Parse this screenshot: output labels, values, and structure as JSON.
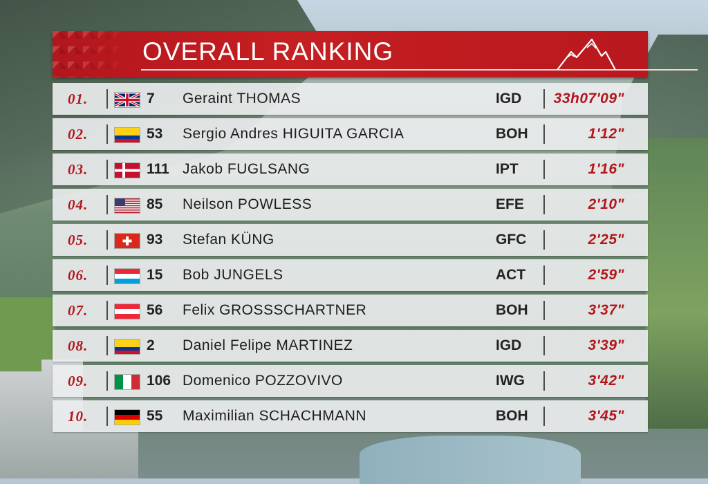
{
  "title": "OVERALL RANKING",
  "colors": {
    "accent": "#b3161d",
    "row_bg": "#eceeef",
    "text": "#1d1d1d"
  },
  "logo": {
    "icon": "mountain-peaks-icon"
  },
  "rows": [
    {
      "rank": "01.",
      "flag": "gb",
      "bib": "7",
      "name": "Geraint THOMAS",
      "team": "IGD",
      "time": "33h07'09\""
    },
    {
      "rank": "02.",
      "flag": "co",
      "bib": "53",
      "name": "Sergio Andres HIGUITA GARCIA",
      "team": "BOH",
      "time": "1'12\""
    },
    {
      "rank": "03.",
      "flag": "dk",
      "bib": "111",
      "name": "Jakob FUGLSANG",
      "team": "IPT",
      "time": "1'16\""
    },
    {
      "rank": "04.",
      "flag": "us",
      "bib": "85",
      "name": "Neilson POWLESS",
      "team": "EFE",
      "time": "2'10\""
    },
    {
      "rank": "05.",
      "flag": "ch",
      "bib": "93",
      "name": "Stefan KÜNG",
      "team": "GFC",
      "time": "2'25\""
    },
    {
      "rank": "06.",
      "flag": "lu",
      "bib": "15",
      "name": "Bob JUNGELS",
      "team": "ACT",
      "time": "2'59\""
    },
    {
      "rank": "07.",
      "flag": "at",
      "bib": "56",
      "name": "Felix GROSSSCHARTNER",
      "team": "BOH",
      "time": "3'37\""
    },
    {
      "rank": "08.",
      "flag": "co",
      "bib": "2",
      "name": "Daniel Felipe MARTINEZ",
      "team": "IGD",
      "time": "3'39\""
    },
    {
      "rank": "09.",
      "flag": "it",
      "bib": "106",
      "name": "Domenico POZZOVIVO",
      "team": "IWG",
      "time": "3'42\""
    },
    {
      "rank": "10.",
      "flag": "de",
      "bib": "55",
      "name": "Maximilian SCHACHMANN",
      "team": "BOH",
      "time": "3'45\""
    }
  ]
}
